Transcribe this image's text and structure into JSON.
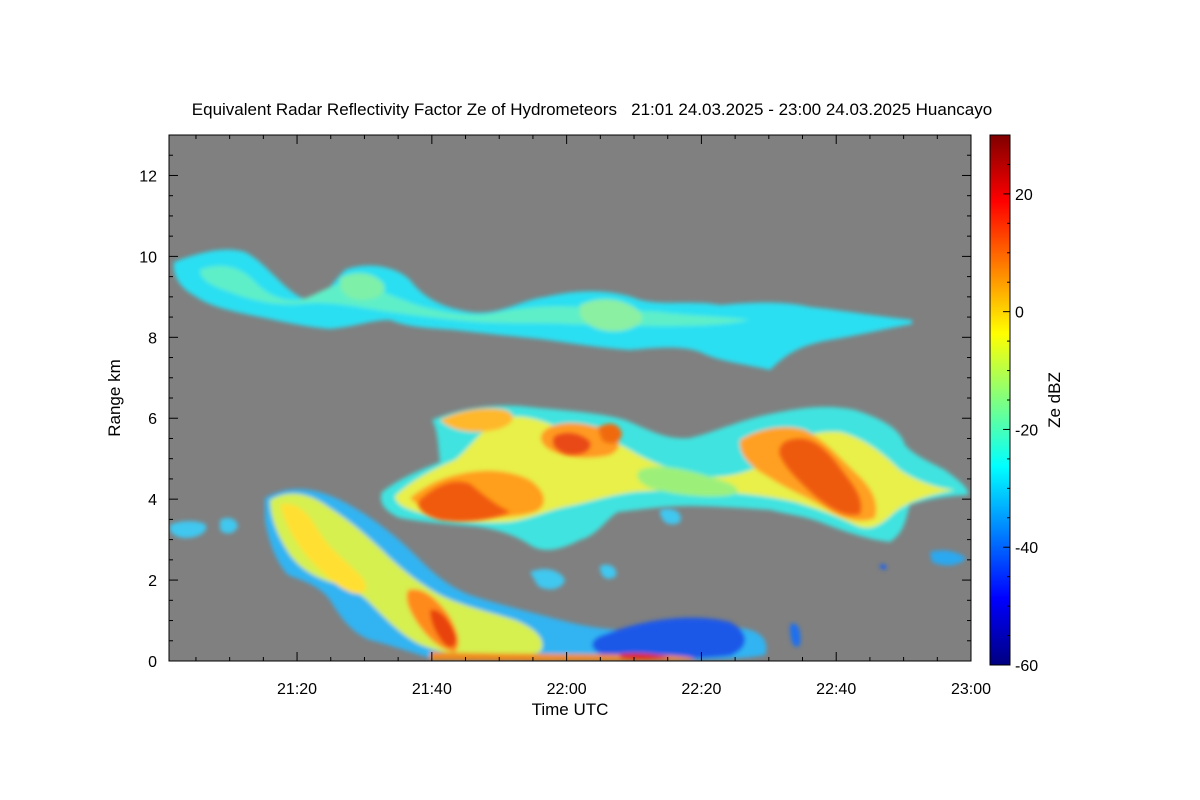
{
  "chart_data": {
    "type": "heatmap",
    "title": "Equivalent Radar Reflectivity Factor Ze of Hydrometeors   21:01 24.03.2025 - 23:00 24.03.2025 Huancayo",
    "xlabel": "Time UTC",
    "ylabel": "Range km",
    "colorbar_label": "Ze dBZ",
    "x_ticks": [
      "21:20",
      "21:40",
      "22:00",
      "22:20",
      "22:40",
      "23:00"
    ],
    "x_tick_minutes": [
      80,
      100,
      120,
      140,
      160,
      180
    ],
    "xlim_minutes": [
      61,
      180
    ],
    "y_ticks": [
      0,
      2,
      4,
      6,
      8,
      10,
      12
    ],
    "ylim": [
      0,
      13
    ],
    "colorbar_ticks": [
      -60,
      -40,
      -20,
      0,
      20
    ],
    "colorbar_range": [
      -60,
      30
    ],
    "background_color": "#808080",
    "colormap": [
      "#000080",
      "#0000ff",
      "#0080ff",
      "#00ffff",
      "#80ff80",
      "#ffff00",
      "#ff8000",
      "#ff0000",
      "#800000"
    ],
    "features": [
      {
        "type": "cirrus band",
        "time_minutes": [
          62,
          172
        ],
        "range_km": [
          7.2,
          10.3
        ],
        "ze_dbz": [
          -30,
          -18
        ]
      },
      {
        "type": "mid-level convective cloud",
        "time_minutes": [
          93,
          180
        ],
        "range_km": [
          3.0,
          6.4
        ],
        "ze_dbz": [
          -30,
          15
        ]
      },
      {
        "type": "strong core",
        "time_minutes": [
          101,
          107
        ],
        "range_km": [
          3.6,
          4.6
        ],
        "ze_dbz": [
          8,
          15
        ]
      },
      {
        "type": "strong core",
        "time_minutes": [
          155,
          168
        ],
        "range_km": [
          3.8,
          5.5
        ],
        "ze_dbz": [
          5,
          12
        ]
      },
      {
        "type": "precipitation fall streaks",
        "time_minutes": [
          75,
          115
        ],
        "range_km": [
          0,
          4.3
        ],
        "ze_dbz": [
          -20,
          10
        ]
      },
      {
        "type": "low-level cloud fragments",
        "time_minutes": [
          62,
          172
        ],
        "range_km": [
          0,
          3.0
        ],
        "ze_dbz": [
          -50,
          -25
        ]
      }
    ]
  }
}
